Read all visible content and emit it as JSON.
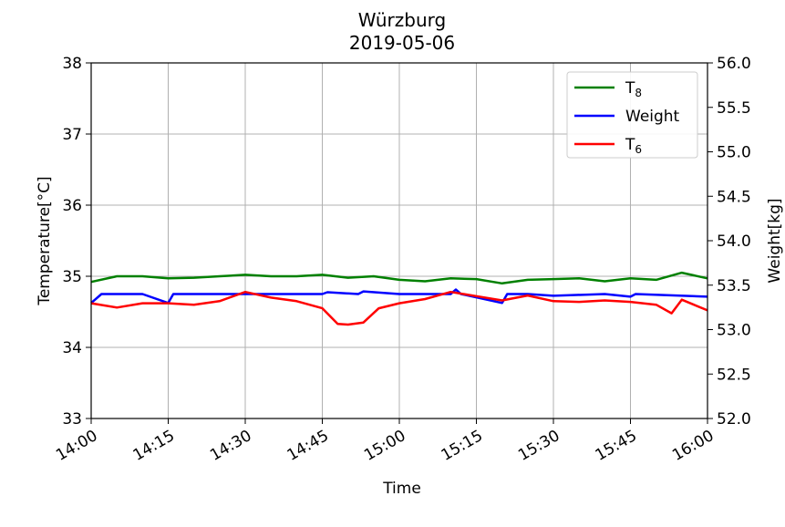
{
  "chart_data": {
    "type": "line",
    "title": "Würzburg",
    "subtitle": "2019-05-06",
    "xlabel": "Time",
    "ylabel_left": "Temperature[°C]",
    "ylabel_right": "Weight[kg]",
    "xlim": [
      "14:00",
      "16:00"
    ],
    "x_ticks": [
      "14:00",
      "14:15",
      "14:30",
      "14:45",
      "15:00",
      "15:15",
      "15:30",
      "15:45",
      "16:00"
    ],
    "ylim_left": [
      33,
      38
    ],
    "y_ticks_left": [
      "33",
      "34",
      "35",
      "36",
      "37",
      "38"
    ],
    "ylim_right": [
      52.0,
      56.0
    ],
    "y_ticks_right": [
      "52.0",
      "52.5",
      "53.0",
      "53.5",
      "54.0",
      "54.5",
      "55.0",
      "55.5",
      "56.0"
    ],
    "grid": true,
    "legend_position": "top-right",
    "legend": [
      {
        "main": "T",
        "sub": "8",
        "color": "#008000"
      },
      {
        "main": "Weight",
        "sub": "",
        "color": "#0000ff"
      },
      {
        "main": "T",
        "sub": "6",
        "color": "#ff0000"
      }
    ],
    "series": [
      {
        "name": "T8",
        "axis": "left",
        "color": "#008000",
        "x": [
          "14:00",
          "14:05",
          "14:10",
          "14:15",
          "14:20",
          "14:25",
          "14:30",
          "14:35",
          "14:40",
          "14:45",
          "14:50",
          "14:55",
          "15:00",
          "15:05",
          "15:10",
          "15:15",
          "15:20",
          "15:25",
          "15:30",
          "15:35",
          "15:40",
          "15:45",
          "15:50",
          "15:55",
          "16:00"
        ],
        "values": [
          34.92,
          35.0,
          35.0,
          34.97,
          34.98,
          35.0,
          35.02,
          35.0,
          35.0,
          35.02,
          34.98,
          35.0,
          34.95,
          34.93,
          34.97,
          34.96,
          34.9,
          34.95,
          34.96,
          34.97,
          34.93,
          34.97,
          34.95,
          35.05,
          34.97
        ]
      },
      {
        "name": "Weight",
        "axis": "right",
        "color": "#0000ff",
        "x": [
          "14:00",
          "14:02",
          "14:10",
          "14:15",
          "14:16",
          "14:20",
          "14:30",
          "14:40",
          "14:45",
          "14:46",
          "14:52",
          "14:53",
          "15:00",
          "15:10",
          "15:11",
          "15:12",
          "15:20",
          "15:21",
          "15:25",
          "15:30",
          "15:40",
          "15:45",
          "15:46",
          "16:00"
        ],
        "values": [
          53.3,
          53.4,
          53.4,
          53.3,
          53.4,
          53.4,
          53.4,
          53.4,
          53.4,
          53.42,
          53.4,
          53.43,
          53.4,
          53.4,
          53.45,
          53.4,
          53.3,
          53.4,
          53.4,
          53.38,
          53.4,
          53.37,
          53.4,
          53.37
        ]
      },
      {
        "name": "T6",
        "axis": "left",
        "color": "#ff0000",
        "x": [
          "14:00",
          "14:05",
          "14:10",
          "14:15",
          "14:20",
          "14:25",
          "14:30",
          "14:35",
          "14:40",
          "14:45",
          "14:48",
          "14:50",
          "14:53",
          "14:56",
          "15:00",
          "15:05",
          "15:10",
          "15:15",
          "15:20",
          "15:25",
          "15:30",
          "15:35",
          "15:40",
          "15:45",
          "15:50",
          "15:53",
          "15:55",
          "16:00"
        ],
        "values": [
          34.62,
          34.56,
          34.62,
          34.62,
          34.6,
          34.65,
          34.78,
          34.7,
          34.65,
          34.55,
          34.33,
          34.32,
          34.35,
          34.55,
          34.62,
          34.68,
          34.78,
          34.72,
          34.66,
          34.73,
          34.65,
          34.64,
          34.66,
          34.64,
          34.6,
          34.48,
          34.67,
          34.52
        ]
      }
    ]
  }
}
